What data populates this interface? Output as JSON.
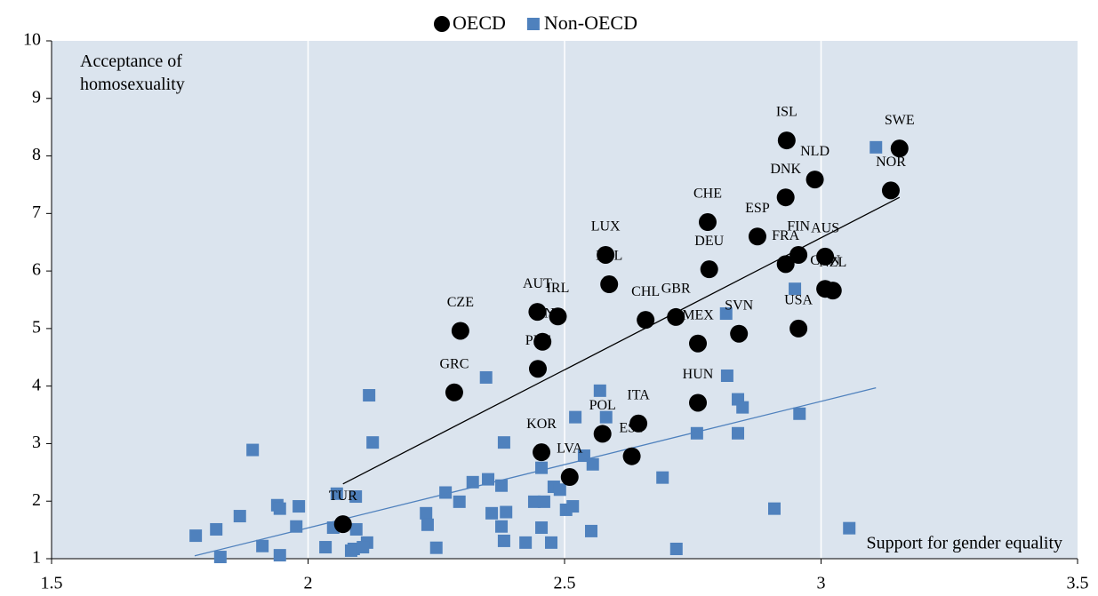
{
  "chart_data": {
    "type": "scatter",
    "x_label": "Support for gender equality",
    "y_label": "Acceptance of homosexuality",
    "xlim": [
      1.5,
      3.5
    ],
    "xticks": [
      1.5,
      2,
      2.5,
      3,
      3.5
    ],
    "ylim": [
      1,
      10
    ],
    "yticks": [
      1,
      2,
      3,
      4,
      5,
      6,
      7,
      8,
      9,
      10
    ],
    "grid": true,
    "legend": "top",
    "series": [
      {
        "name": "OECD",
        "color": "#000000",
        "marker": "circle",
        "labels": [
          "ISL",
          "SWE",
          "NLD",
          "NOR",
          "DNK",
          "CHE",
          "ESP",
          "FIN",
          "AUS",
          "FRA",
          "CAN",
          "NZL",
          "DEU",
          "LUX",
          "BEL",
          "AUT",
          "IRL",
          "CHL",
          "GBR",
          "SVN",
          "USA",
          "MEX",
          "CZE",
          "JPN",
          "PRT",
          "GRC",
          "HUN",
          "ITA",
          "POL",
          "EST",
          "KOR",
          "LVA",
          "TUR"
        ],
        "x": [
          2.933,
          3.153,
          2.988,
          3.136,
          2.931,
          2.779,
          2.876,
          2.956,
          3.008,
          2.931,
          3.008,
          3.023,
          2.782,
          2.58,
          2.587,
          2.447,
          2.487,
          2.658,
          2.717,
          2.84,
          2.956,
          2.76,
          2.297,
          2.457,
          2.448,
          2.285,
          2.76,
          2.644,
          2.574,
          2.631,
          2.455,
          2.51,
          2.068
        ],
        "values": [
          8.27,
          8.13,
          7.59,
          7.4,
          7.28,
          6.85,
          6.6,
          6.28,
          6.25,
          6.12,
          5.69,
          5.66,
          6.03,
          6.28,
          5.77,
          5.29,
          5.21,
          5.15,
          5.2,
          4.91,
          5.0,
          4.74,
          4.96,
          4.77,
          4.3,
          3.89,
          3.71,
          3.35,
          3.17,
          2.78,
          2.85,
          2.42,
          1.6
        ],
        "trend": {
          "x": [
            2.068,
            3.153
          ],
          "y": [
            2.3,
            7.28
          ]
        }
      },
      {
        "name": "Non-OECD",
        "color": "#4f81bd",
        "marker": "square",
        "x": [
          3.107,
          2.949,
          2.815,
          2.817,
          2.838,
          2.847,
          2.958,
          2.758,
          2.838,
          2.909,
          3.055,
          2.718,
          2.691,
          2.569,
          2.581,
          2.521,
          2.555,
          2.538,
          2.455,
          2.479,
          2.441,
          2.46,
          2.491,
          2.455,
          2.424,
          2.474,
          2.552,
          2.347,
          2.382,
          2.377,
          2.351,
          2.321,
          2.268,
          2.295,
          2.23,
          2.233,
          2.25,
          2.386,
          2.377,
          2.382,
          2.358,
          2.503,
          2.516,
          2.119,
          2.126,
          1.892,
          2.056,
          2.093,
          1.982,
          1.94,
          1.945,
          1.867,
          1.977,
          1.821,
          1.781,
          1.911,
          1.945,
          1.829,
          2.049,
          2.094,
          2.089,
          2.115,
          2.107,
          2.034,
          2.084
        ],
        "values": [
          8.15,
          5.69,
          5.26,
          4.18,
          3.77,
          3.63,
          3.52,
          3.18,
          3.18,
          1.87,
          1.53,
          1.17,
          2.41,
          3.92,
          3.46,
          3.46,
          2.64,
          2.79,
          2.58,
          2.25,
          1.99,
          1.99,
          2.2,
          1.54,
          1.28,
          1.28,
          1.48,
          4.15,
          3.02,
          2.27,
          2.38,
          2.33,
          2.15,
          1.99,
          1.79,
          1.59,
          1.19,
          1.81,
          1.56,
          1.31,
          1.79,
          1.85,
          1.91,
          3.84,
          3.02,
          2.89,
          2.13,
          2.08,
          1.91,
          1.93,
          1.87,
          1.74,
          1.56,
          1.51,
          1.4,
          1.22,
          1.06,
          1.03,
          1.54,
          1.51,
          1.17,
          1.28,
          1.2,
          1.2,
          1.14
        ],
        "trend": {
          "x": [
            1.779,
            3.107
          ],
          "y": [
            1.05,
            3.97
          ]
        }
      }
    ]
  }
}
